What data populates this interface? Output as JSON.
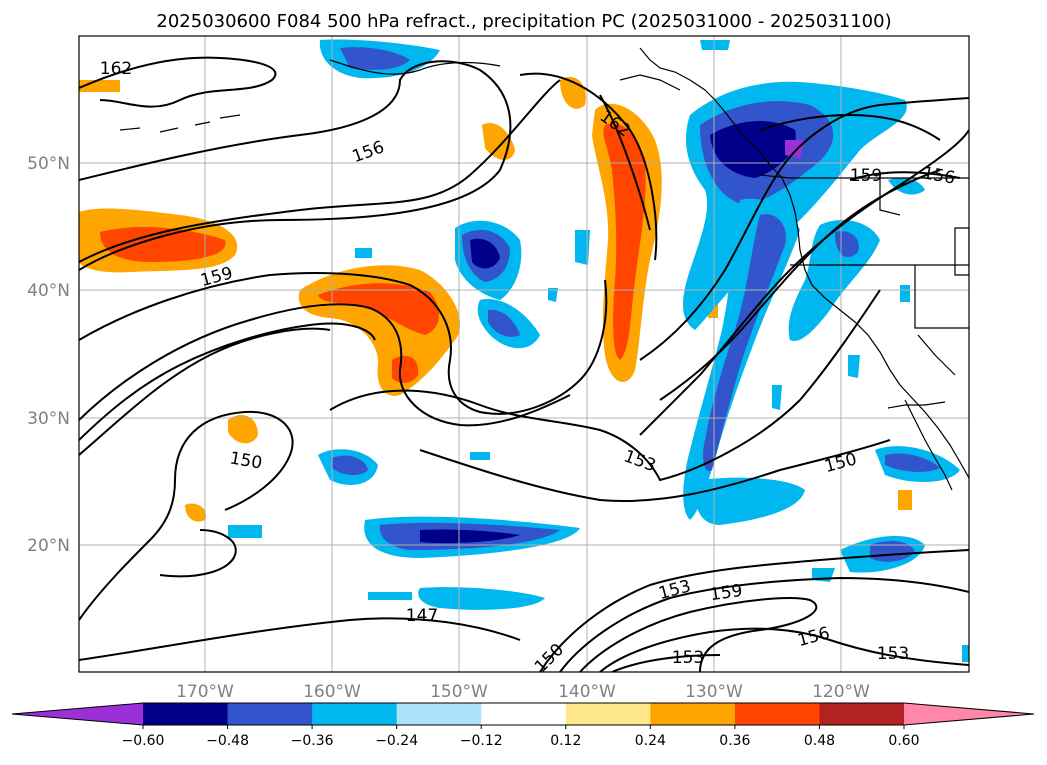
{
  "title": "2025030600 F084 500 hPa refract., precipitation PC (2025031000 - 2025031100)",
  "axes": {
    "lat_labels": [
      "50°N",
      "40°N",
      "30°N",
      "20°N"
    ],
    "lon_labels": [
      "170°W",
      "160°W",
      "150°W",
      "140°W",
      "130°W",
      "120°W"
    ]
  },
  "colorbar": {
    "ticks": [
      "−0.60",
      "−0.48",
      "−0.36",
      "−0.24",
      "−0.12",
      "0.12",
      "0.24",
      "0.36",
      "0.48",
      "0.60"
    ],
    "colors": [
      "#9b30d9",
      "#00008b",
      "#3355cc",
      "#00b7f0",
      "#aee2fb",
      "#ffffff",
      "#ffe88a",
      "#ffa500",
      "#ff4500",
      "#b22222",
      "#ff88aa"
    ]
  },
  "contour_labels": {
    "c162a": "162",
    "c162b": "162",
    "c156a": "156",
    "c159a": "159",
    "c150a": "150",
    "c153a": "153",
    "c150b": "150",
    "c147": "147",
    "c159b": "159",
    "c156b": "156",
    "c159c": "159",
    "c156c": "156",
    "c153b": "153",
    "c153c": "153",
    "c153d": "153",
    "c150c": "150"
  }
}
